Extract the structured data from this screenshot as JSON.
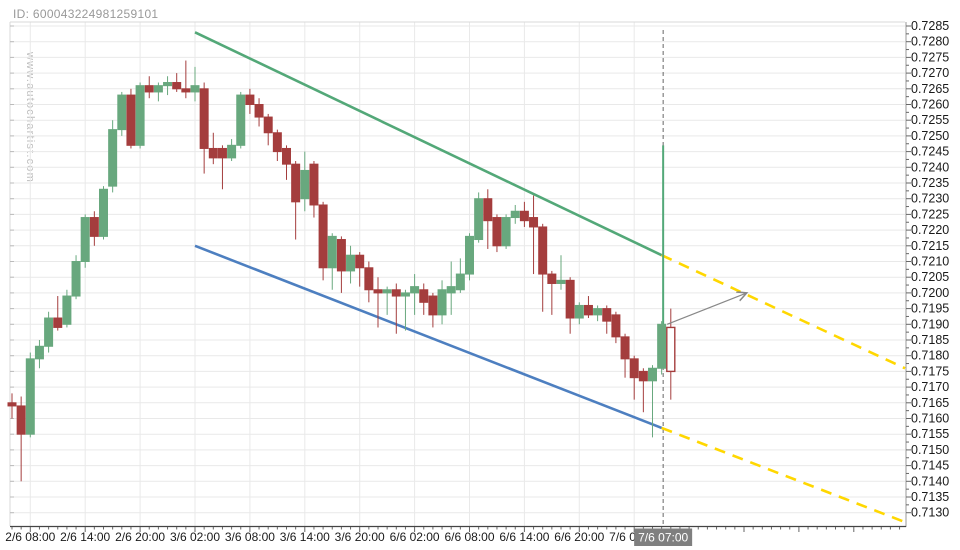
{
  "meta": {
    "id_label": "ID: 600043224981259101",
    "watermark": "www.autochartist.com"
  },
  "colors": {
    "bull_candle": "#68a87e",
    "bear_candle": "#a43d3d",
    "trendline_upper": "#53a878",
    "trendline_lower": "#4d7fc0",
    "forecast_dashed": "#ffd700",
    "grid": "#e9e9e9",
    "axis_line": "#444444",
    "right_axis_line": "#999999",
    "tick": "#666666",
    "label_text": "#1a1a1a",
    "marker_dashed": "#666666",
    "arrow": "#888888",
    "highlight_bg": "#7f7f7f",
    "highlight_text": "#ffffff"
  },
  "chart_data": {
    "type": "candlestick",
    "title": "",
    "y_axis": {
      "min": 0.713,
      "max": 0.7285,
      "tick_step": 0.0005,
      "decimals": 4,
      "side": "right"
    },
    "x_axis": {
      "hours_per_label": 6,
      "labels": [
        {
          "index": 2,
          "text": "2/6 08:00"
        },
        {
          "index": 8,
          "text": "2/6 14:00"
        },
        {
          "index": 14,
          "text": "2/6 20:00"
        },
        {
          "index": 20,
          "text": "3/6 02:00"
        },
        {
          "index": 26,
          "text": "3/6 08:00"
        },
        {
          "index": 32,
          "text": "3/6 14:00"
        },
        {
          "index": 38,
          "text": "3/6 20:00"
        },
        {
          "index": 44,
          "text": "6/6 02:00"
        },
        {
          "index": 50,
          "text": "6/6 08:00"
        },
        {
          "index": 56,
          "text": "6/6 14:00"
        },
        {
          "index": 62,
          "text": "6/6 20:00"
        },
        {
          "index": 68,
          "text": "7/6 02:00"
        }
      ]
    },
    "highlight_label": {
      "text": "7/6 07:00",
      "at_index": 71
    },
    "candles_format": [
      "time",
      "open",
      "high",
      "low",
      "close",
      "style"
    ],
    "candles": [
      [
        "2/6 06:00",
        0.7165,
        0.7168,
        0.716,
        0.7164
      ],
      [
        "2/6 07:00",
        0.7164,
        0.7167,
        0.714,
        0.7155
      ],
      [
        "2/6 08:00",
        0.7155,
        0.7181,
        0.7154,
        0.7179
      ],
      [
        "2/6 09:00",
        0.7179,
        0.7185,
        0.7176,
        0.7183
      ],
      [
        "2/6 10:00",
        0.7183,
        0.7194,
        0.7181,
        0.7192
      ],
      [
        "2/6 11:00",
        0.7192,
        0.7199,
        0.7188,
        0.7189
      ],
      [
        "2/6 12:00",
        0.719,
        0.7201,
        0.7189,
        0.7199
      ],
      [
        "2/6 13:00",
        0.7199,
        0.7212,
        0.7198,
        0.721
      ],
      [
        "2/6 14:00",
        0.721,
        0.7225,
        0.7208,
        0.7224
      ],
      [
        "2/6 15:00",
        0.7224,
        0.7226,
        0.7215,
        0.7218
      ],
      [
        "2/6 16:00",
        0.7218,
        0.7234,
        0.7217,
        0.7233
      ],
      [
        "2/6 17:00",
        0.7234,
        0.7255,
        0.7232,
        0.7252
      ],
      [
        "2/6 18:00",
        0.7252,
        0.7264,
        0.725,
        0.7263
      ],
      [
        "2/6 19:00",
        0.7263,
        0.7265,
        0.7246,
        0.7247
      ],
      [
        "2/6 20:00",
        0.7247,
        0.7267,
        0.7246,
        0.7266
      ],
      [
        "2/6 21:00",
        0.7266,
        0.7269,
        0.7262,
        0.7264
      ],
      [
        "2/6 22:00",
        0.7264,
        0.7267,
        0.7261,
        0.7266
      ],
      [
        "2/6 23:00",
        0.7266,
        0.7269,
        0.7263,
        0.7267
      ],
      [
        "3/6 00:00",
        0.7267,
        0.727,
        0.7264,
        0.7265
      ],
      [
        "3/6 01:00",
        0.7265,
        0.7274,
        0.7262,
        0.7264
      ],
      [
        "3/6 02:00",
        0.7264,
        0.7272,
        0.7261,
        0.7266
      ],
      [
        "3/6 03:00",
        0.7265,
        0.7267,
        0.7238,
        0.7246
      ],
      [
        "3/6 04:00",
        0.7246,
        0.7251,
        0.7241,
        0.7243
      ],
      [
        "3/6 05:00",
        0.7246,
        0.7247,
        0.7233,
        0.7243
      ],
      [
        "3/6 06:00",
        0.7243,
        0.7249,
        0.7242,
        0.7247
      ],
      [
        "3/6 07:00",
        0.7247,
        0.7264,
        0.7246,
        0.7263
      ],
      [
        "3/6 08:00",
        0.7263,
        0.7265,
        0.7257,
        0.726
      ],
      [
        "3/6 09:00",
        0.726,
        0.7262,
        0.7253,
        0.7256
      ],
      [
        "3/6 10:00",
        0.7256,
        0.7257,
        0.7247,
        0.7251
      ],
      [
        "3/6 11:00",
        0.7251,
        0.7252,
        0.7242,
        0.7245
      ],
      [
        "3/6 12:00",
        0.7246,
        0.7247,
        0.7236,
        0.7241
      ],
      [
        "3/6 13:00",
        0.7241,
        0.7242,
        0.7217,
        0.7229
      ],
      [
        "3/6 14:00",
        0.723,
        0.7245,
        0.7226,
        0.7239
      ],
      [
        "3/6 15:00",
        0.7241,
        0.7242,
        0.7224,
        0.7228
      ],
      [
        "3/6 16:00",
        0.7228,
        0.7229,
        0.7204,
        0.7208
      ],
      [
        "3/6 17:00",
        0.7208,
        0.7219,
        0.7201,
        0.7218
      ],
      [
        "3/6 18:00",
        0.7217,
        0.7218,
        0.72,
        0.7207
      ],
      [
        "3/6 19:00",
        0.7207,
        0.7215,
        0.7203,
        0.7212
      ],
      [
        "3/6 20:00",
        0.7212,
        0.7213,
        0.7202,
        0.7208
      ],
      [
        "3/6 21:00",
        0.7208,
        0.721,
        0.7197,
        0.7201
      ],
      [
        "3/6 22:00",
        0.7201,
        0.7205,
        0.7189,
        0.72
      ],
      [
        "3/6 23:00",
        0.72,
        0.7202,
        0.7193,
        0.7201
      ],
      [
        "6/6 00:00",
        0.7201,
        0.7203,
        0.7187,
        0.7199
      ],
      [
        "6/6 01:00",
        0.7199,
        0.7201,
        0.7188,
        0.72
      ],
      [
        "6/6 02:00",
        0.72,
        0.7206,
        0.7193,
        0.7202
      ],
      [
        "6/6 03:00",
        0.7201,
        0.7203,
        0.7193,
        0.7197
      ],
      [
        "6/6 04:00",
        0.7199,
        0.72,
        0.7189,
        0.7193
      ],
      [
        "6/6 05:00",
        0.7193,
        0.7204,
        0.719,
        0.7201
      ],
      [
        "6/6 06:00",
        0.72,
        0.721,
        0.7193,
        0.7202
      ],
      [
        "6/6 07:00",
        0.7201,
        0.7211,
        0.72,
        0.7206
      ],
      [
        "6/6 08:00",
        0.7206,
        0.7219,
        0.7204,
        0.7218
      ],
      [
        "6/6 09:00",
        0.7217,
        0.7232,
        0.7216,
        0.723
      ],
      [
        "6/6 10:00",
        0.723,
        0.7233,
        0.7214,
        0.7223
      ],
      [
        "6/6 11:00",
        0.7224,
        0.7225,
        0.7213,
        0.7215
      ],
      [
        "6/6 12:00",
        0.7215,
        0.7225,
        0.7214,
        0.7224
      ],
      [
        "6/6 13:00",
        0.7224,
        0.7228,
        0.7222,
        0.7226
      ],
      [
        "6/6 14:00",
        0.7226,
        0.7229,
        0.7221,
        0.7223
      ],
      [
        "6/6 15:00",
        0.7224,
        0.7231,
        0.7206,
        0.7221
      ],
      [
        "6/6 16:00",
        0.7221,
        0.7222,
        0.7194,
        0.7206
      ],
      [
        "6/6 17:00",
        0.7206,
        0.7207,
        0.7193,
        0.7203
      ],
      [
        "6/6 18:00",
        0.7203,
        0.7212,
        0.7201,
        0.7204
      ],
      [
        "6/6 19:00",
        0.7204,
        0.7205,
        0.7187,
        0.7192
      ],
      [
        "6/6 20:00",
        0.7192,
        0.7197,
        0.719,
        0.7196
      ],
      [
        "6/6 21:00",
        0.7196,
        0.7199,
        0.7192,
        0.7193
      ],
      [
        "6/6 22:00",
        0.7193,
        0.7196,
        0.7191,
        0.7195
      ],
      [
        "6/6 23:00",
        0.7195,
        0.7196,
        0.7187,
        0.7191
      ],
      [
        "7/6 00:00",
        0.7193,
        0.7194,
        0.7184,
        0.7186
      ],
      [
        "7/6 01:00",
        0.7186,
        0.7187,
        0.7173,
        0.7179
      ],
      [
        "7/6 02:00",
        0.7179,
        0.718,
        0.7166,
        0.7173
      ],
      [
        "7/6 03:00",
        0.7175,
        0.7176,
        0.7162,
        0.7172
      ],
      [
        "7/6 04:00",
        0.7172,
        0.7177,
        0.7154,
        0.7176
      ],
      [
        "7/6 05:00",
        0.7176,
        0.7191,
        0.7174,
        0.719
      ],
      [
        "7/6 06:00",
        0.7189,
        0.7195,
        0.7166,
        0.7175,
        "hollow"
      ]
    ],
    "pattern": {
      "upper_trendline": {
        "from": {
          "i": 20,
          "p": 0.7283
        },
        "to": {
          "i": 71,
          "p": 0.7212
        }
      },
      "lower_trendline": {
        "from": {
          "i": 20,
          "p": 0.7215
        },
        "to": {
          "i": 71,
          "p": 0.7157
        }
      },
      "upper_forecast": {
        "from": {
          "i": 71,
          "p": 0.7212
        },
        "to": {
          "i": 97.6,
          "p": 0.7176
        }
      },
      "lower_forecast": {
        "from": {
          "i": 71,
          "p": 0.7157
        },
        "to": {
          "i": 97.6,
          "p": 0.7127
        }
      },
      "vertical_marker": {
        "at_index": 71,
        "green_segment": {
          "p_top": 0.7247,
          "p_bottom": 0.7189
        }
      },
      "forecast_arrow": {
        "from": {
          "i": 71.6,
          "p": 0.719
        },
        "to": {
          "i": 80.3,
          "p": 0.72
        }
      }
    }
  }
}
